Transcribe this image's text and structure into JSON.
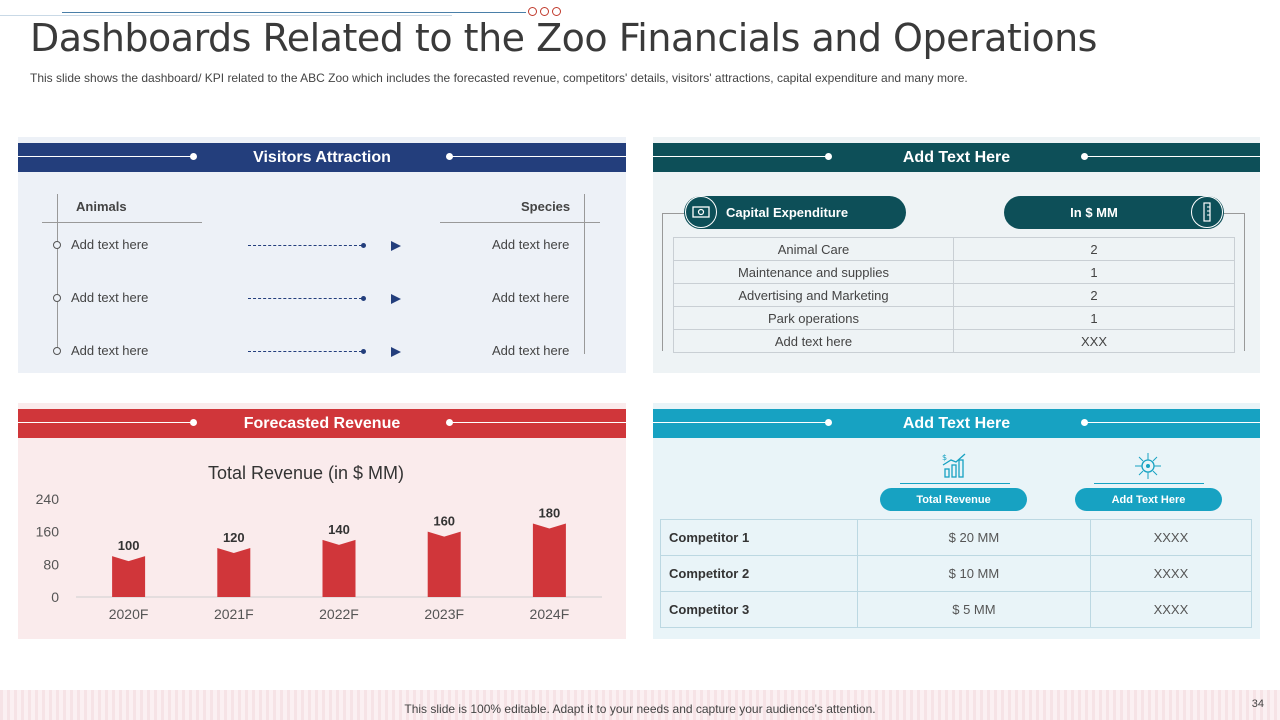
{
  "title": "Dashboards Related to the Zoo Financials and Operations",
  "subtitle": "This slide shows the dashboard/  KPI related to the ABC Zoo which includes the forecasted revenue,  competitors' details, visitors' attractions, capital expenditure and many more.",
  "visitors": {
    "heading": "Visitors Attraction",
    "col_left": "Animals",
    "col_right": "Species",
    "rows": [
      {
        "left": "Add text here",
        "right": "Add text here"
      },
      {
        "left": "Add text here",
        "right": "Add text here"
      },
      {
        "left": "Add text here",
        "right": "Add text here"
      }
    ]
  },
  "capex": {
    "heading": "Add Text Here",
    "pill_left": "Capital Expenditure",
    "pill_right": "In $ MM",
    "rows": [
      {
        "item": "Animal Care",
        "value": "2"
      },
      {
        "item": "Maintenance and supplies",
        "value": "1"
      },
      {
        "item": "Advertising and Marketing",
        "value": "2"
      },
      {
        "item": "Park operations",
        "value": "1"
      },
      {
        "item": "Add text here",
        "value": "XXX"
      }
    ]
  },
  "forecast": {
    "heading": "Forecasted Revenue"
  },
  "chart_data": {
    "type": "bar",
    "title": "Total Revenue (in $ MM)",
    "categories": [
      "2020F",
      "2021F",
      "2022F",
      "2023F",
      "2024F"
    ],
    "values": [
      100,
      120,
      140,
      160,
      180
    ],
    "yticks": [
      "0",
      "80",
      "160",
      "240"
    ],
    "ylim": [
      0,
      240
    ],
    "xlabel": "",
    "ylabel": "",
    "grid": false,
    "bar_color": "#d0363a"
  },
  "competitors": {
    "heading": "Add Text Here",
    "pill_1": "Total Revenue",
    "pill_2": "Add Text Here",
    "rows": [
      {
        "name": "Competitor 1",
        "revenue": "$ 20 MM",
        "other": "XXXX"
      },
      {
        "name": "Competitor 2",
        "revenue": "$ 10 MM",
        "other": "XXXX"
      },
      {
        "name": "Competitor 3",
        "revenue": "$ 5 MM",
        "other": "XXXX"
      }
    ]
  },
  "footer": {
    "text": "This slide is 100% editable. Adapt it to your needs and capture your audience's attention.",
    "page": "34"
  },
  "colors": {
    "navy": "#233e7c",
    "teal_dark": "#0d4f58",
    "red": "#d0363a",
    "cyan": "#17a2c2"
  }
}
